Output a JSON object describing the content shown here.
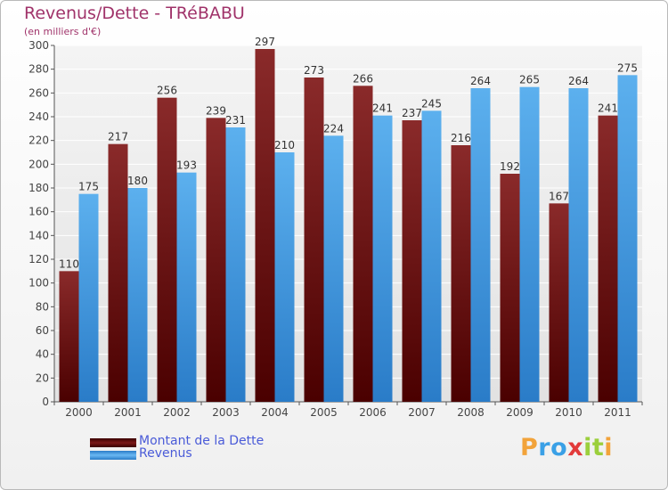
{
  "title": "Revenus/Dette - TRéBABU",
  "subtitle": "(en milliers d'€)",
  "chart_data": {
    "type": "bar",
    "categories": [
      "2000",
      "2001",
      "2002",
      "2003",
      "2004",
      "2005",
      "2006",
      "2007",
      "2008",
      "2009",
      "2010",
      "2011"
    ],
    "series": [
      {
        "name": "Montant de la Dette",
        "color": "#6b0c0c",
        "values": [
          110,
          217,
          256,
          239,
          297,
          273,
          266,
          237,
          216,
          192,
          167,
          241
        ]
      },
      {
        "name": "Revenus",
        "color": "#3d97e0",
        "values": [
          175,
          180,
          193,
          231,
          210,
          224,
          241,
          245,
          264,
          265,
          264,
          275
        ]
      }
    ],
    "ylim": [
      0,
      300
    ],
    "yticks": [
      0,
      20,
      40,
      60,
      80,
      100,
      120,
      140,
      160,
      180,
      200,
      220,
      240,
      260,
      280,
      300
    ],
    "grid": true,
    "legend": "bottom-left"
  },
  "legend": [
    {
      "label": "Montant de la Dette",
      "color": "#6b0c0c"
    },
    {
      "label": "Revenus",
      "color": "#3d97e0"
    }
  ],
  "logo": {
    "letters": [
      "P",
      "r",
      "o",
      "x",
      "i",
      "t",
      "i"
    ],
    "colors": [
      "#f2a33a",
      "#3aa0e6",
      "#3aa0e6",
      "#e23a3a",
      "#9bcf3c",
      "#9bcf3c",
      "#f2a33a"
    ]
  }
}
